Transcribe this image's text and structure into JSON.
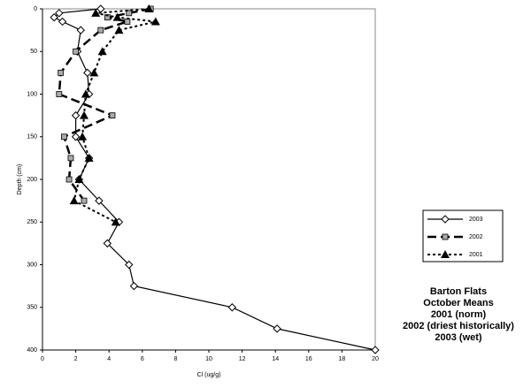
{
  "chart_data": {
    "type": "line",
    "x_label": "Cl (ug/g)",
    "y_label": "Depth (cm)",
    "xlim": [
      0,
      20
    ],
    "xticks": [
      0,
      2,
      4,
      6,
      8,
      10,
      12,
      14,
      16,
      18,
      20
    ],
    "ylim": [
      0,
      400
    ],
    "yticks": [
      0,
      50,
      100,
      150,
      200,
      250,
      300,
      350,
      400
    ],
    "y_reversed": true,
    "grid": false,
    "legend": "right",
    "series": [
      {
        "name": "2003",
        "color": "#000000",
        "marker": "diamond",
        "line": "solid",
        "x": [
          3.5,
          1.0,
          0.7,
          1.2,
          2.3,
          2.1,
          2.7,
          2.8,
          2.0,
          2.0,
          2.8,
          2.2,
          3.4,
          4.6,
          3.9,
          5.2,
          5.5,
          11.4,
          14.1,
          20
        ],
        "values": [
          0,
          5,
          10,
          15,
          25,
          50,
          75,
          100,
          125,
          150,
          175,
          200,
          225,
          250,
          275,
          300,
          325,
          350,
          375,
          400
        ]
      },
      {
        "name": "2002",
        "color": "#000000",
        "marker": "square",
        "line": "dashed",
        "x": [
          6.5,
          5.2,
          3.9,
          5.1,
          3.5,
          2.0,
          1.1,
          1.0,
          4.2,
          1.3,
          1.7,
          1.6,
          2.5
        ],
        "values": [
          0,
          5,
          10,
          15,
          25,
          50,
          75,
          100,
          125,
          150,
          175,
          200,
          225
        ]
      },
      {
        "name": "2001",
        "color": "#000000",
        "marker": "triangle",
        "line": "dotted",
        "x": [
          6.4,
          3.2,
          4.5,
          6.8,
          4.6,
          3.6,
          3.1,
          2.6,
          2.5,
          2.4,
          2.8,
          2.2,
          1.9,
          4.4
        ],
        "values": [
          0,
          5,
          10,
          15,
          25,
          50,
          75,
          100,
          125,
          150,
          175,
          200,
          225,
          250
        ]
      }
    ],
    "annotation": [
      "Barton Flats",
      "October Means",
      "2001 (norm)",
      "2002 (driest historically)",
      "2003 (wet)"
    ]
  }
}
